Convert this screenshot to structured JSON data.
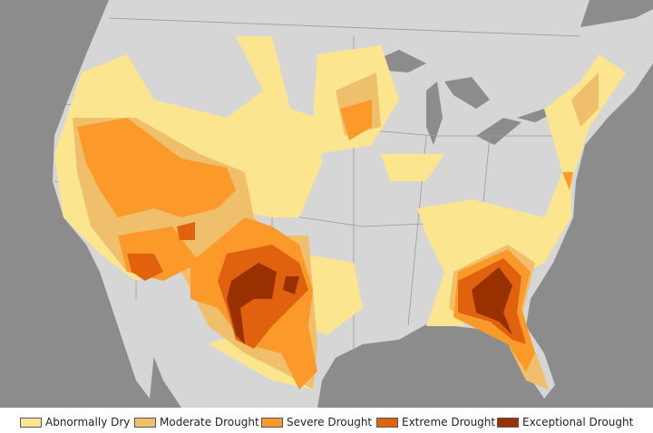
{
  "map": {
    "colors": {
      "ocean": "#8c8c8c",
      "land": "#d6d6d6",
      "lakes": "#8c8c8c",
      "borders": "#999999"
    }
  },
  "legend": {
    "items": [
      {
        "label": "Abnormally Dry",
        "color": "#fbe68f"
      },
      {
        "label": "Moderate Drought",
        "color": "#f0bf6c"
      },
      {
        "label": "Severe Drought",
        "color": "#fb9a2a"
      },
      {
        "label": "Extreme Drought",
        "color": "#e0620f"
      },
      {
        "label": "Exceptional Drought",
        "color": "#993000"
      }
    ]
  }
}
